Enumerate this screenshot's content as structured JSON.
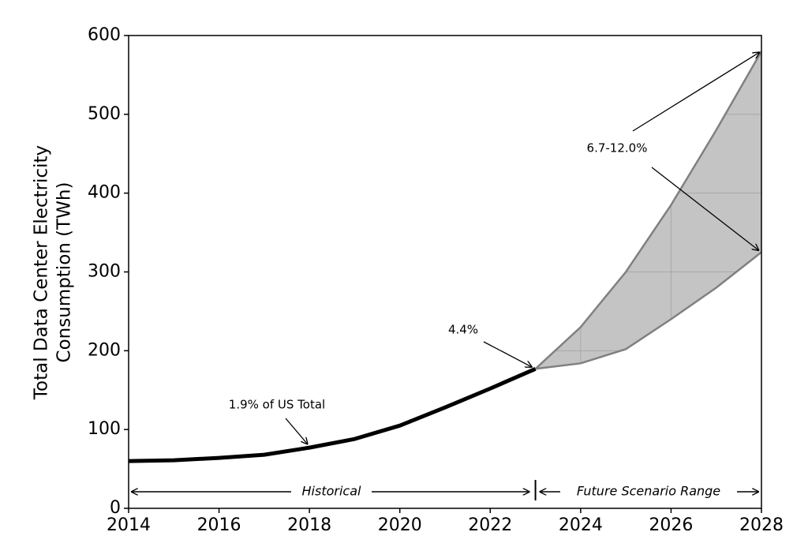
{
  "chart_data": {
    "type": "line",
    "ylabel": [
      "Total Data Center Electricity",
      "Consumption (TWh)"
    ],
    "x": [
      2014,
      2015,
      2016,
      2017,
      2018,
      2019,
      2020,
      2021,
      2022,
      2023,
      2024,
      2025,
      2026,
      2027,
      2028
    ],
    "series": [
      {
        "color": "#000000",
        "values": [
          60,
          61,
          64,
          68,
          77,
          88,
          105,
          128,
          152,
          177,
          null,
          null,
          null,
          null,
          null
        ]
      }
    ],
    "band": {
      "color": "#c4c4c4",
      "edge_color": "#808080",
      "upper": [
        null,
        null,
        null,
        null,
        null,
        null,
        null,
        null,
        null,
        177,
        230,
        300,
        385,
        480,
        580
      ],
      "lower": [
        null,
        null,
        null,
        null,
        null,
        null,
        null,
        null,
        null,
        177,
        184,
        202,
        240,
        280,
        325
      ]
    },
    "xlim": [
      2014,
      2028
    ],
    "xticks": [
      2014,
      2016,
      2018,
      2020,
      2022,
      2024,
      2026,
      2028
    ],
    "ylim": [
      0,
      600
    ],
    "yticks": [
      0,
      100,
      200,
      300,
      400,
      500,
      600
    ],
    "grid": true,
    "annotations": [
      {
        "text": "1.9% of US Total"
      },
      {
        "text": "4.4%"
      },
      {
        "text": "6.7-12.0%"
      }
    ],
    "regions": [
      {
        "text": "Historical"
      },
      {
        "text": "Future Scenario Range"
      }
    ]
  }
}
